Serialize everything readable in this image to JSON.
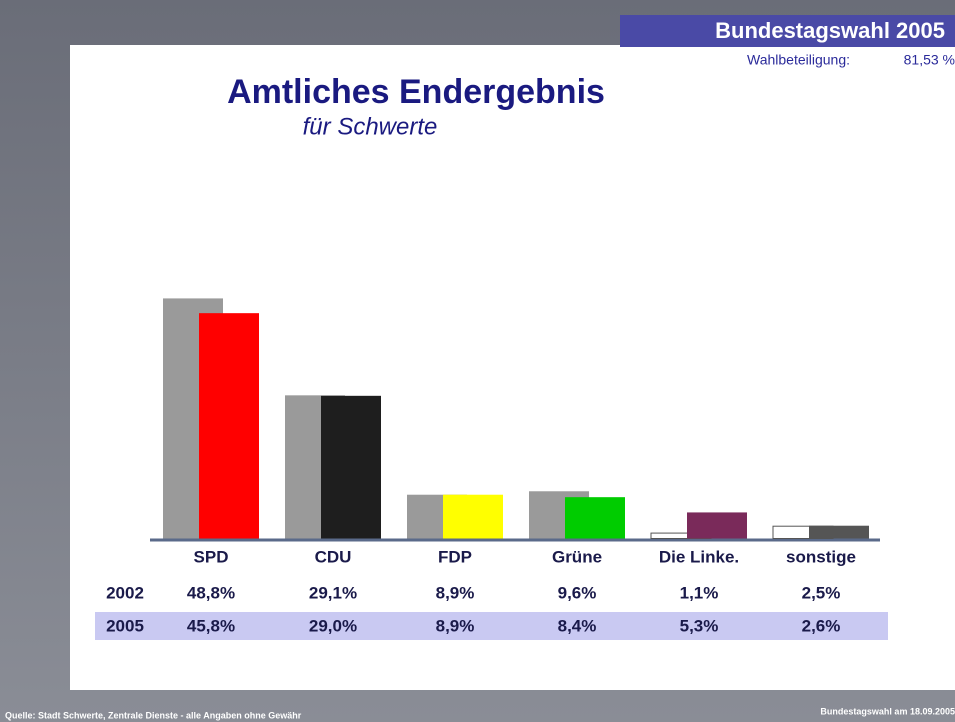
{
  "header": {
    "title": "Bundestagswahl 2005",
    "turnout_label": "Wahlbeteiligung:",
    "turnout": "81,53 %"
  },
  "chart_data": {
    "type": "bar",
    "title": "Amtliches Endergebnis",
    "subtitle": "für Schwerte",
    "categories": [
      "SPD",
      "CDU",
      "FDP",
      "Grüne",
      "Die Linke.",
      "sonstige"
    ],
    "series": [
      {
        "name": "2002",
        "color": "#9a9a9a",
        "colors": [
          "#9a9a9a",
          "#9a9a9a",
          "#9a9a9a",
          "#9a9a9a",
          "#ffffff",
          "#ffffff"
        ],
        "values": [
          48.8,
          29.1,
          8.9,
          9.6,
          1.1,
          2.5
        ],
        "value_labels": [
          "48,8%",
          "29,1%",
          "8,9%",
          "9,6%",
          "1,1%",
          "2,5%"
        ]
      },
      {
        "name": "2005",
        "color": "#ff0000",
        "colors": [
          "#ff0000",
          "#1e1e1e",
          "#ffff00",
          "#00cc00",
          "#7a2a5a",
          "#555555"
        ],
        "values": [
          45.8,
          29.0,
          8.9,
          8.4,
          5.3,
          2.6
        ],
        "value_labels": [
          "45,8%",
          "29,0%",
          "8,9%",
          "8,4%",
          "5,3%",
          "2,6%"
        ]
      }
    ]
  },
  "footer": {
    "source": "Quelle: Stadt Schwerte, Zentrale Dienste - alle Angaben ohne Gewähr",
    "date": "Bundestagswahl am 18.09.2005"
  }
}
